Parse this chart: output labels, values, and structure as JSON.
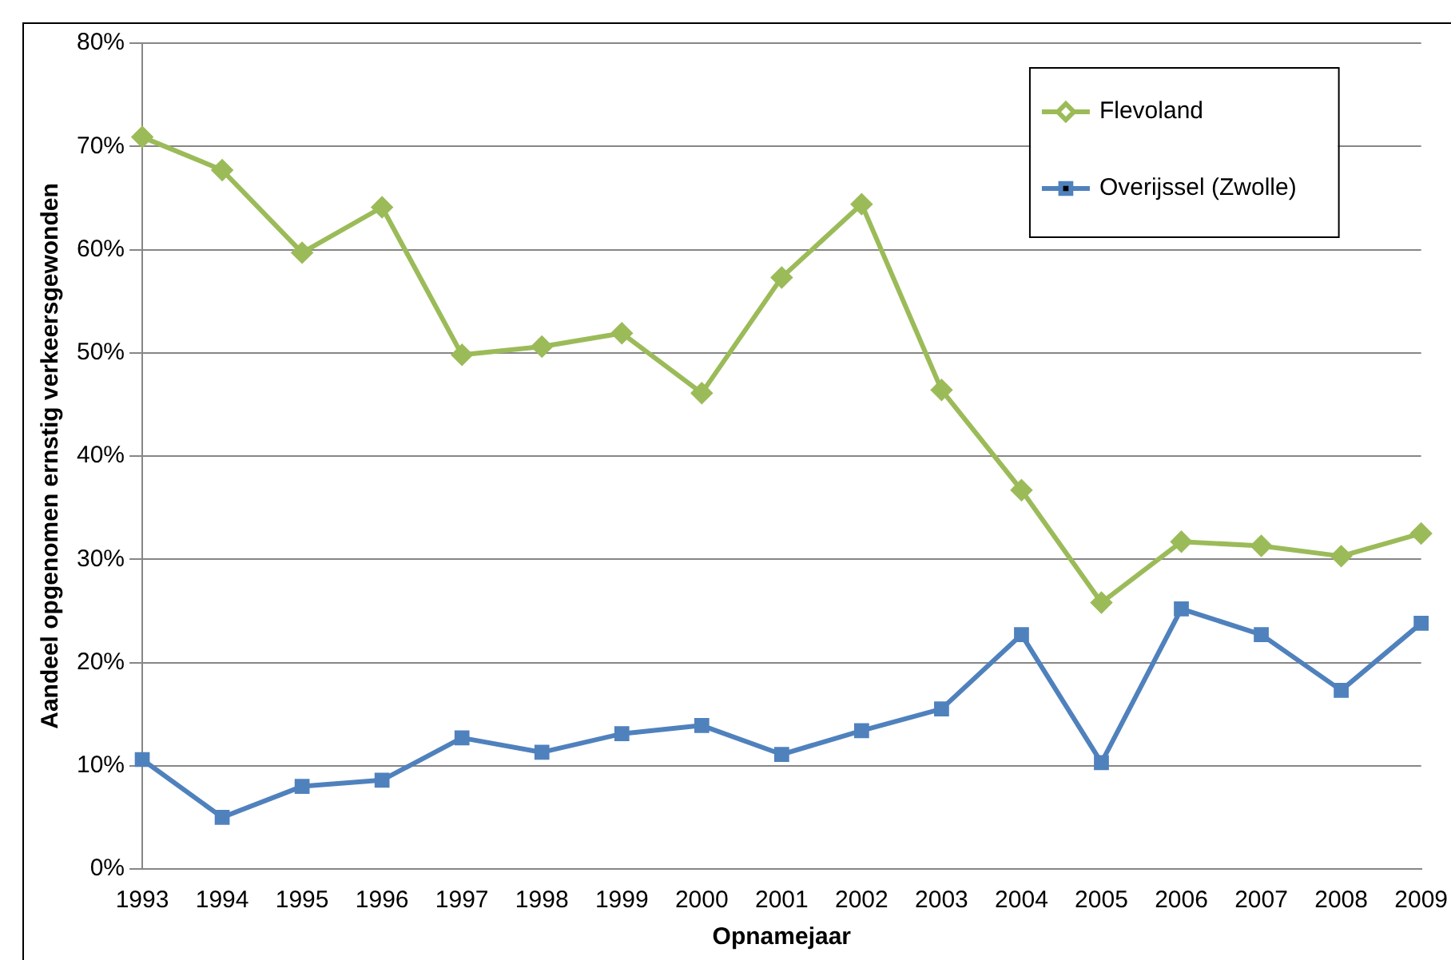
{
  "chart_data": {
    "type": "line",
    "xlabel": "Opnamejaar",
    "ylabel": "Aandeel opgenomen ernstig verkeersgewonden",
    "categories": [
      "1993",
      "1994",
      "1995",
      "1996",
      "1997",
      "1998",
      "1999",
      "2000",
      "2001",
      "2002",
      "2003",
      "2004",
      "2005",
      "2006",
      "2007",
      "2008",
      "2009"
    ],
    "series": [
      {
        "name": "Flevoland",
        "color": "#9bbb59",
        "marker": "diamond",
        "values": [
          70.9,
          67.7,
          59.7,
          64.1,
          49.8,
          50.6,
          51.9,
          46.1,
          57.3,
          64.4,
          46.4,
          36.7,
          25.8,
          31.7,
          31.3,
          30.3,
          32.5
        ]
      },
      {
        "name": "Overijssel (Zwolle)",
        "color": "#4f81bd",
        "marker": "square",
        "values": [
          10.6,
          5.0,
          8.0,
          8.6,
          12.7,
          11.3,
          13.1,
          13.9,
          11.1,
          13.4,
          15.5,
          22.7,
          10.3,
          25.2,
          22.7,
          17.3,
          23.8
        ]
      }
    ],
    "ylim": [
      0,
      80
    ],
    "yticks": [
      {
        "value": 0,
        "label": "0%"
      },
      {
        "value": 10,
        "label": "10%"
      },
      {
        "value": 20,
        "label": "20%"
      },
      {
        "value": 30,
        "label": "30%"
      },
      {
        "value": 40,
        "label": "40%"
      },
      {
        "value": 50,
        "label": "50%"
      },
      {
        "value": 60,
        "label": "60%"
      },
      {
        "value": 70,
        "label": "70%"
      },
      {
        "value": 80,
        "label": "80%"
      }
    ],
    "grid": "y",
    "legend": "top right",
    "line_style": "solid"
  }
}
